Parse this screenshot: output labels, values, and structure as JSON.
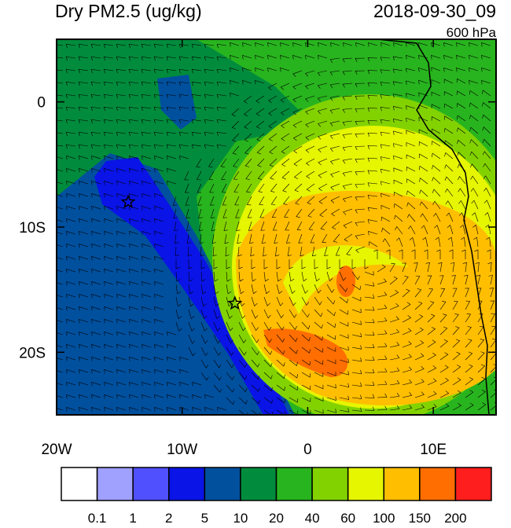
{
  "chart_data": {
    "type": "map",
    "title": "Dry PM2.5 (ug/kg)",
    "date": "2018-09-30_09",
    "level": "600 hPa",
    "xlim": [
      -20,
      15
    ],
    "ylim": [
      -25,
      5
    ],
    "xticks": [
      {
        "value": -20,
        "label": "20W"
      },
      {
        "value": -10,
        "label": "10W"
      },
      0,
      {
        "value": 10,
        "label": "10E"
      }
    ],
    "yticks": [
      0,
      {
        "value": -10,
        "label": "10S"
      },
      {
        "value": -20,
        "label": "20S"
      }
    ],
    "colorbar": {
      "levels": [
        0.1,
        1,
        2,
        5,
        10,
        20,
        40,
        60,
        100,
        150,
        200
      ],
      "colors": [
        "#ffffff",
        "#a0a0ff",
        "#5050ff",
        "#0a14e6",
        "#00509e",
        "#008c3c",
        "#28b41e",
        "#82d200",
        "#e6f500",
        "#ffbe00",
        "#ff6e00",
        "#ff1e1e"
      ]
    },
    "markers": [
      {
        "lon": -14.3,
        "lat": -8
      },
      {
        "lon": -5.8,
        "lat": -16.1
      }
    ]
  }
}
